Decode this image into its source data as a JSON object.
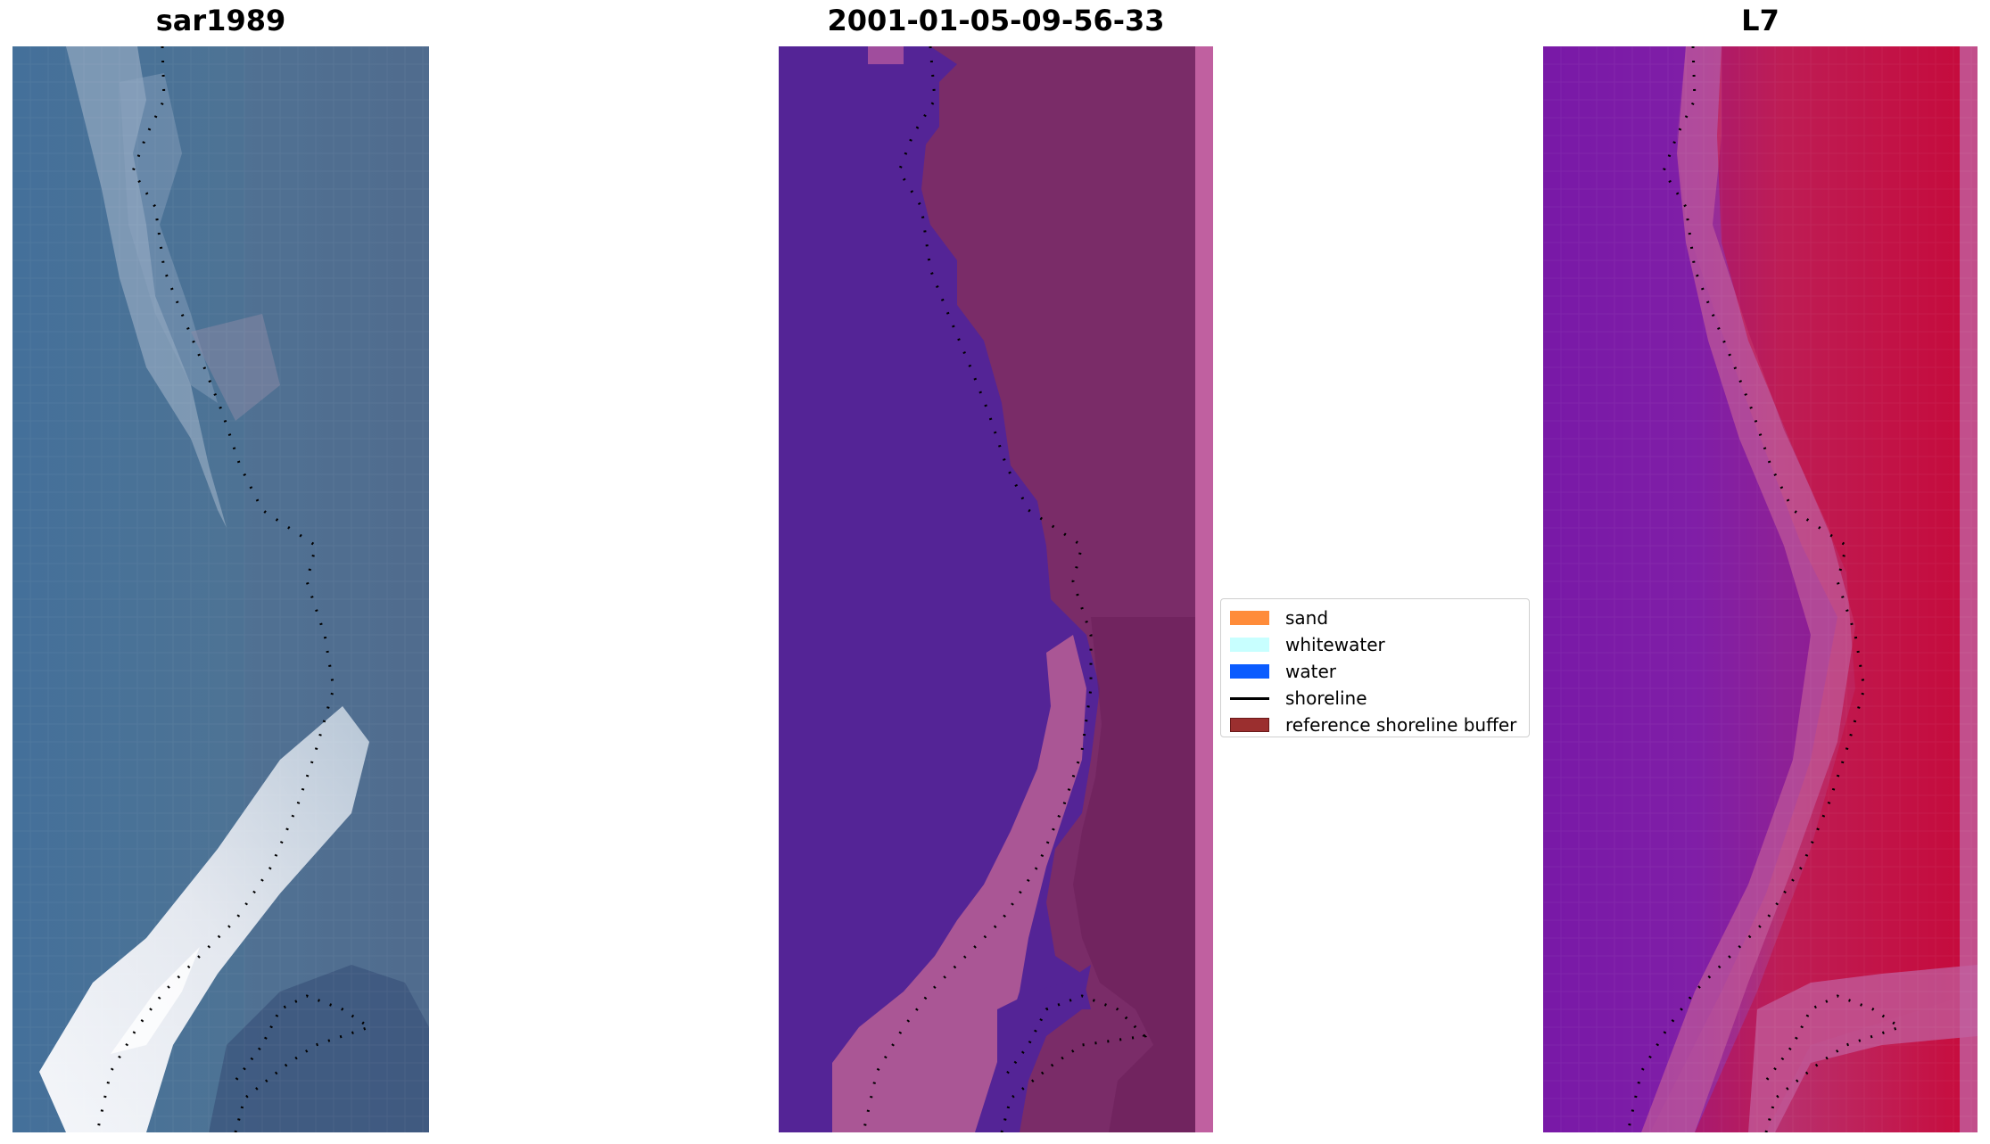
{
  "panels": [
    {
      "title": "sar1989"
    },
    {
      "title": "2001-01-05-09-56-33"
    },
    {
      "title": "L7"
    }
  ],
  "legend": {
    "items": [
      {
        "label": "sand",
        "kind": "patch",
        "color": "#ff8c3a"
      },
      {
        "label": "whitewater",
        "kind": "patch",
        "color": "#c8ffff"
      },
      {
        "label": "water",
        "kind": "patch",
        "color": "#0a5cff"
      },
      {
        "label": "shoreline",
        "kind": "line",
        "color": "#000000"
      },
      {
        "label": "reference shoreline buffer",
        "kind": "patch",
        "color": "#9b2f2f"
      }
    ]
  },
  "colors": {
    "rgb_water": "#4a6f94",
    "rgb_beach": "#e8ecf3",
    "class_water": "#542496",
    "class_land": "#7a2c68",
    "class_buffer_edge": "#c060a0",
    "index_water": "#7a20a8",
    "index_land": "#c40a3c"
  }
}
